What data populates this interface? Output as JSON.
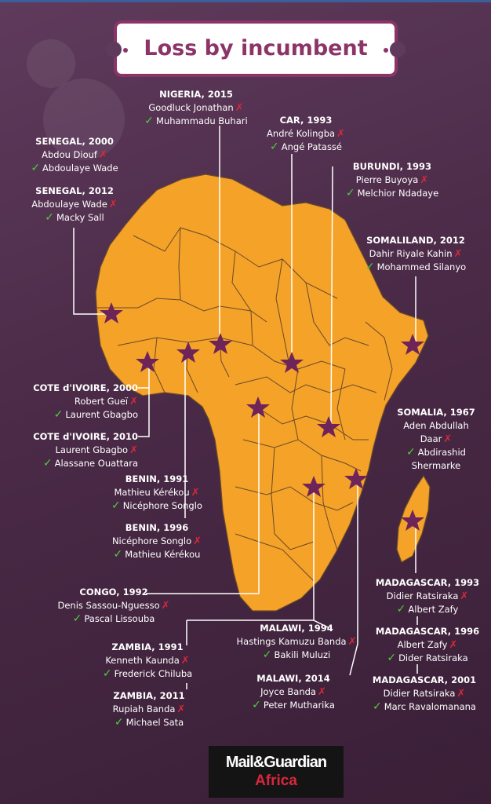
{
  "title": "Loss by incumbent",
  "colors": {
    "map_fill": "#f4a228",
    "star": "#6e2458",
    "loss_mark": "#d8283b",
    "win_mark": "#4bd03a",
    "title": "#8c3468"
  },
  "icons": {
    "loss": "cross-icon",
    "win": "check-icon",
    "location": "star-icon"
  },
  "entries": [
    {
      "id": "nigeria-2015",
      "country": "NIGERIA, 2015",
      "loser": "Goodluck Jonathan",
      "winner": "Muhammadu Buhari"
    },
    {
      "id": "car-1993",
      "country": "CAR, 1993",
      "loser": "André Kolingba",
      "winner": "Angé Patassé"
    },
    {
      "id": "senegal-2000",
      "country": "SENEGAL, 2000",
      "loser": "Abdou Diouf",
      "winner": "Abdoulaye Wade"
    },
    {
      "id": "senegal-2012",
      "country": "SENEGAL, 2012",
      "loser": "Abdoulaye Wade",
      "winner": "Macky Sall"
    },
    {
      "id": "burundi-1993",
      "country": "BURUNDI, 1993",
      "loser": "Pierre Buyoya",
      "winner": "Melchior Ndadaye"
    },
    {
      "id": "somaliland-2012",
      "country": "SOMALILAND, 2012",
      "loser": "Dahir Riyale Kahin",
      "winner": "Mohammed Silanyo"
    },
    {
      "id": "cotedivoire-2000",
      "country": "COTE d'IVOIRE, 2000",
      "loser": "Robert Gueï",
      "winner": "Laurent Gbagbo"
    },
    {
      "id": "cotedivoire-2010",
      "country": "COTE d'IVOIRE, 2010",
      "loser": "Laurent Gbagbo",
      "winner": "Alassane Ouattara"
    },
    {
      "id": "somalia-1967",
      "country": "SOMALIA, 1967",
      "loser_lines": [
        "Aden Abdullah",
        "Daar"
      ],
      "winner_lines": [
        "Abdirashid",
        "Shermarke"
      ]
    },
    {
      "id": "benin-1991",
      "country": "BENIN, 1991",
      "loser": "Mathieu Kérékou",
      "winner": "Nicéphore Songlo"
    },
    {
      "id": "benin-1996",
      "country": "BENIN, 1996",
      "loser": "Nicéphore Songlo",
      "winner": "Mathieu Kérékou"
    },
    {
      "id": "congo-1992",
      "country": "CONGO, 1992",
      "loser": "Denis Sassou-Nguesso",
      "winner": "Pascal Lissouba"
    },
    {
      "id": "madagascar-1993",
      "country": "MADAGASCAR, 1993",
      "loser": "Didier Ratsiraka",
      "winner": "Albert Zafy"
    },
    {
      "id": "madagascar-1996",
      "country": "MADAGASCAR, 1996",
      "loser": "Albert Zafy",
      "winner": "Dider Ratsiraka"
    },
    {
      "id": "madagascar-2001",
      "country": "MADAGASCAR, 2001",
      "loser": "Didier Ratsiraka",
      "winner": "Marc Ravalomanana"
    },
    {
      "id": "malawi-1994",
      "country": "MALAWI, 1994",
      "loser": "Hastings Kamuzu Banda",
      "winner": "Bakili Muluzi"
    },
    {
      "id": "malawi-2014",
      "country": "MALAWI, 2014",
      "loser": "Joyce Banda",
      "winner": "Peter Mutharika"
    },
    {
      "id": "zambia-1991",
      "country": "ZAMBIA, 1991",
      "loser": "Kenneth Kaunda",
      "winner": "Frederick Chiluba"
    },
    {
      "id": "zambia-2011",
      "country": "ZAMBIA, 2011",
      "loser": "Rupiah Banda",
      "winner": "Michael Sata"
    }
  ],
  "logo": {
    "main": "Mail&Guardian",
    "sub": "Africa"
  }
}
